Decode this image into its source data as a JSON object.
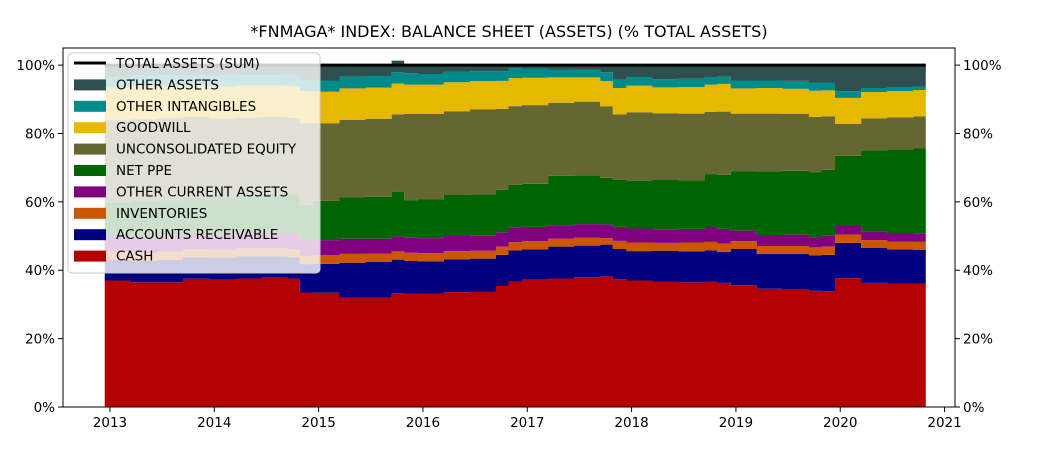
{
  "chart_data": {
    "type": "area",
    "stacked": true,
    "step": true,
    "title": "*FNMAGA* INDEX: BALANCE SHEET (ASSETS) (% TOTAL ASSETS)",
    "xlabel": "",
    "ylabel": "",
    "xlim": [
      2012.55,
      2021.1
    ],
    "ylim": [
      0,
      105
    ],
    "x_ticks": [
      "2013",
      "2014",
      "2015",
      "2016",
      "2017",
      "2018",
      "2019",
      "2020",
      "2021"
    ],
    "x_tick_values": [
      2013,
      2014,
      2015,
      2016,
      2017,
      2018,
      2019,
      2020,
      2021
    ],
    "y_ticks": [
      "0%",
      "20%",
      "40%",
      "60%",
      "80%",
      "100%"
    ],
    "y_tick_values": [
      0,
      20,
      40,
      60,
      80,
      100
    ],
    "legend_position": "top-left",
    "x": [
      2012.95,
      2013.2,
      2013.45,
      2013.7,
      2013.95,
      2014.2,
      2014.45,
      2014.7,
      2014.82,
      2014.95,
      2015.2,
      2015.45,
      2015.7,
      2015.82,
      2015.95,
      2016.2,
      2016.45,
      2016.7,
      2016.82,
      2016.95,
      2017.2,
      2017.45,
      2017.7,
      2017.82,
      2017.95,
      2018.2,
      2018.45,
      2018.7,
      2018.82,
      2018.95,
      2019.2,
      2019.45,
      2019.7,
      2019.82,
      2019.95,
      2020.2,
      2020.45,
      2020.7
    ],
    "x_end": 2020.82,
    "series": [
      {
        "name": "CASH",
        "color": "#b40000",
        "values": [
          37,
          36.5,
          36.5,
          37.5,
          37.2,
          37.6,
          37.8,
          37.6,
          33.5,
          33.4,
          32,
          32,
          33.3,
          33.1,
          33.2,
          33.6,
          33.8,
          35.4,
          36.6,
          37.2,
          37.6,
          38,
          38.2,
          37.4,
          37,
          36.7,
          36.5,
          36.7,
          36.3,
          35.6,
          34.6,
          34.5,
          34,
          33.9,
          37.7,
          36.3,
          36,
          36
        ]
      },
      {
        "name": "ACCOUNTS RECEIVABLE",
        "color": "#000080",
        "values": [
          6,
          6.2,
          6.5,
          6.3,
          6.5,
          6.4,
          6.2,
          6.2,
          8.3,
          8.5,
          10.2,
          10.4,
          9.8,
          9.6,
          9.4,
          9.6,
          9.6,
          9.1,
          9.2,
          8.9,
          9.3,
          9.2,
          9.3,
          8.8,
          8.6,
          9,
          9,
          9.1,
          9.1,
          10.6,
          10.2,
          10.3,
          10.4,
          10.6,
          10.3,
          10.2,
          10.1,
          10
        ]
      },
      {
        "name": "INVENTORIES",
        "color": "#cc5500",
        "values": [
          2.4,
          2.3,
          2.4,
          2.4,
          2.3,
          2.4,
          2.4,
          2.4,
          2.4,
          2.5,
          2.6,
          2.5,
          2.4,
          2.4,
          2.4,
          2.4,
          2.3,
          2.4,
          2.4,
          2.4,
          2.3,
          2.3,
          1.9,
          2.4,
          2.5,
          2.3,
          2.6,
          2.5,
          2.4,
          2.3,
          2.3,
          2.3,
          2.3,
          2.4,
          2.4,
          2.3,
          2.3,
          2.3
        ]
      },
      {
        "name": "OTHER CURRENT ASSETS",
        "color": "#800080",
        "values": [
          4.5,
          4.6,
          4.5,
          4.4,
          4.4,
          4.4,
          4.5,
          4.4,
          4.5,
          4.4,
          4.4,
          4.3,
          4.4,
          4.4,
          4.4,
          4.4,
          4.4,
          4.2,
          4.2,
          4.2,
          4,
          4,
          4,
          4.1,
          4.1,
          4,
          4,
          4.2,
          4.3,
          3.1,
          3.2,
          3.3,
          2.9,
          3.2,
          2.7,
          2.5,
          2.5,
          2.5
        ]
      },
      {
        "name": "NET PPE",
        "color": "#006400",
        "values": [
          10,
          10.5,
          10.6,
          10.7,
          11,
          11.3,
          11.4,
          11.6,
          10.5,
          11.5,
          12.2,
          12.3,
          13.1,
          11,
          11.3,
          12,
          12.1,
          12.4,
          12.6,
          12.6,
          14.4,
          14.3,
          13.6,
          13.8,
          14,
          14.4,
          14.2,
          15.6,
          15.8,
          17.4,
          18.6,
          18.7,
          19.1,
          19.3,
          20.4,
          23.8,
          24.5,
          24.8
        ]
      },
      {
        "name": "UNCONSOLIDATED EQUITY",
        "color": "#666633",
        "values": [
          24,
          24,
          24,
          23.5,
          23,
          22.6,
          22.5,
          22.4,
          23.8,
          22.7,
          22.6,
          22.8,
          22.6,
          25.2,
          25,
          24.5,
          24.8,
          23.7,
          23,
          23,
          21.4,
          21.5,
          20.9,
          19.1,
          20,
          19.5,
          19.5,
          18.2,
          18.5,
          16.8,
          16.9,
          16.6,
          16.1,
          15.6,
          9.3,
          9.3,
          9.3,
          9.4
        ]
      },
      {
        "name": "GOODWILL",
        "color": "#e6b800",
        "values": [
          9.5,
          9.7,
          9.4,
          9.2,
          9.3,
          9.3,
          9.2,
          9.2,
          9.4,
          9.2,
          9.2,
          9.1,
          9,
          8.6,
          8.6,
          8.5,
          8.3,
          8.2,
          8.2,
          8,
          7.4,
          7.1,
          7.4,
          7.7,
          7.8,
          7.6,
          7.8,
          8,
          8.1,
          7.4,
          7.5,
          7.4,
          7.7,
          7.6,
          7.6,
          7.7,
          7.7,
          7.7
        ]
      },
      {
        "name": "OTHER INTANGIBLES",
        "color": "#008b8b",
        "values": [
          3,
          3.2,
          3.1,
          3,
          3.2,
          3,
          3,
          3.1,
          3.1,
          3.3,
          3.4,
          3.4,
          3.3,
          3.3,
          3.1,
          3,
          2.9,
          2.8,
          2.9,
          2.7,
          2.3,
          2.2,
          2.6,
          2.4,
          2.5,
          2.4,
          2.4,
          2.2,
          2.1,
          2.3,
          2.2,
          2.3,
          2.4,
          2.3,
          2,
          1.2,
          1.1,
          1
        ]
      },
      {
        "name": "OTHER ASSETS",
        "color": "#2f4f4f",
        "values": [
          3.6,
          3,
          3,
          3,
          3.1,
          3,
          3,
          3.1,
          4.5,
          4.5,
          3.4,
          3.2,
          3.4,
          2.4,
          2.6,
          2,
          1.8,
          1.8,
          0.9,
          1,
          1.3,
          1.4,
          2.1,
          4.3,
          3.5,
          4.1,
          4,
          3.5,
          3.4,
          4.5,
          4.5,
          4.6,
          5.1,
          5.1,
          7.6,
          6.7,
          6.5,
          6.3
        ]
      }
    ],
    "total_series": {
      "name": "TOTAL ASSETS (SUM)",
      "color": "#000000",
      "value": 100
    }
  }
}
